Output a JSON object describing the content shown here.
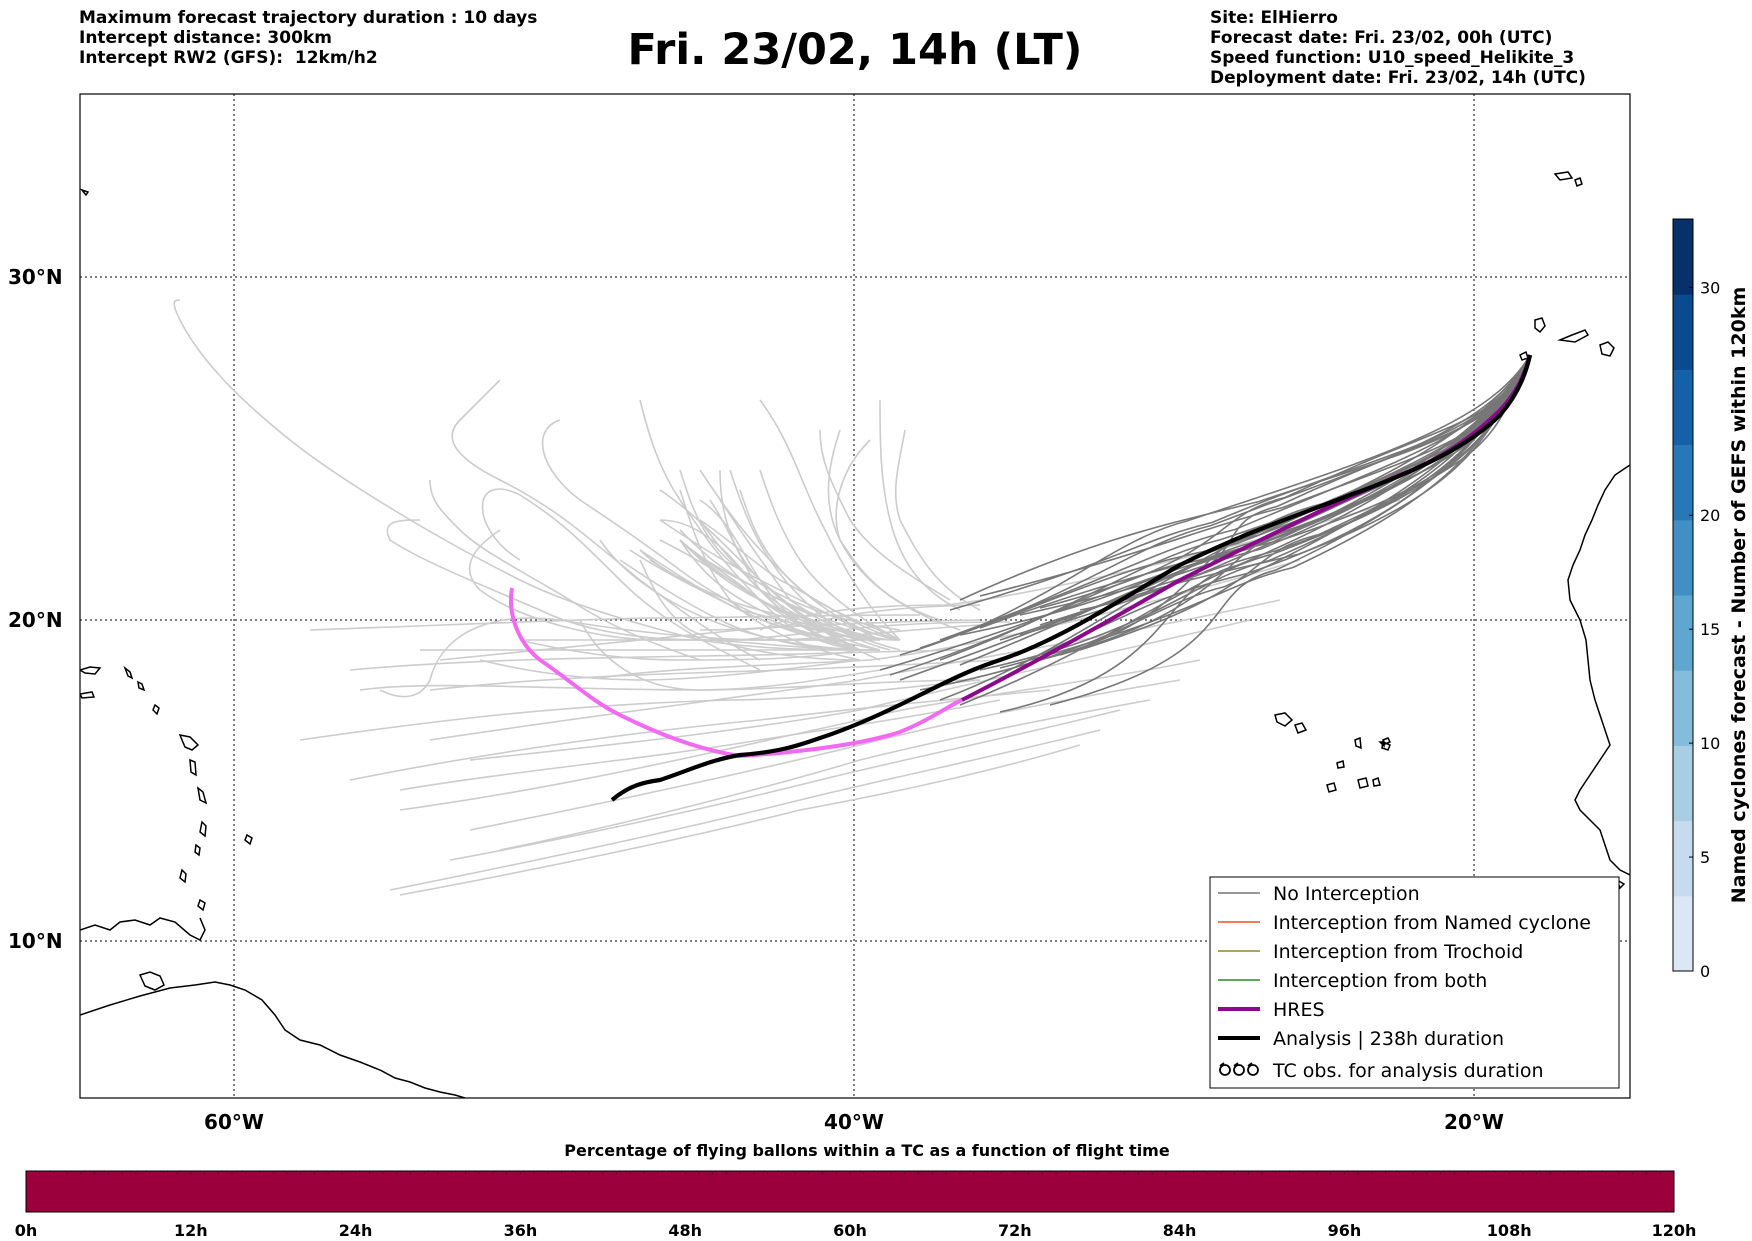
{
  "header": {
    "left_lines": [
      "Maximum forecast trajectory duration : 10 days",
      "Intercept distance: 300km",
      "Intercept RW2 (GFS):  12km/h2"
    ],
    "title": "Fri. 23/02, 14h (LT)",
    "right_lines": [
      "Site: ElHierro",
      "Forecast date: Fri. 23/02, 00h (UTC)",
      "Speed function: U10_speed_Helikite_3",
      "Deployment date: Fri. 23/02, 14h (UTC)"
    ]
  },
  "map": {
    "lon_ticks": [
      "60°W",
      "40°W",
      "20°W"
    ],
    "lat_ticks": [
      "30°N",
      "20°N",
      "10°N"
    ],
    "colors": {
      "no_interception": "#777777",
      "faint_members": "#cccccc",
      "named_cyclone": "#e8541c",
      "trochoid": "#8a8a2a",
      "both": "#2a8a2a",
      "hres": "#8b0a8b",
      "hres_light": "#f26af2",
      "analysis": "#000000",
      "coast": "#000000"
    },
    "legend": {
      "items": [
        {
          "label": "No Interception",
          "kind": "thin",
          "color": "#777777"
        },
        {
          "label": "Interception from Named cyclone",
          "kind": "thin",
          "color": "#e8541c"
        },
        {
          "label": "Interception from Trochoid",
          "kind": "thin",
          "color": "#8a8a2a"
        },
        {
          "label": "Interception from both",
          "kind": "thin",
          "color": "#2a8a2a"
        },
        {
          "label": "HRES",
          "kind": "thick",
          "color": "#8b0a8b"
        },
        {
          "label": "Analysis | 238h duration",
          "kind": "thick",
          "color": "#000000"
        },
        {
          "label": "TC obs. for analysis duration",
          "kind": "symbol",
          "color": "#000000"
        }
      ]
    }
  },
  "colorbar": {
    "label": "Named cyclones forecast - Number of GEFS within 120km",
    "ticks": [
      "0",
      "5",
      "10",
      "15",
      "20",
      "30"
    ],
    "colors": [
      "#dbe7f5",
      "#c7dbef",
      "#a9cee4",
      "#84bcdb",
      "#5fa6d1",
      "#4090c5",
      "#2878b8",
      "#1561a9",
      "#0a4a90",
      "#08306b"
    ]
  },
  "time_bar": {
    "title": "Percentage of flying ballons within a TC as a function of flight time",
    "ticks": [
      "0h",
      "12h",
      "24h",
      "36h",
      "48h",
      "60h",
      "72h",
      "84h",
      "96h",
      "108h",
      "120h"
    ],
    "color": "#9c003c"
  }
}
